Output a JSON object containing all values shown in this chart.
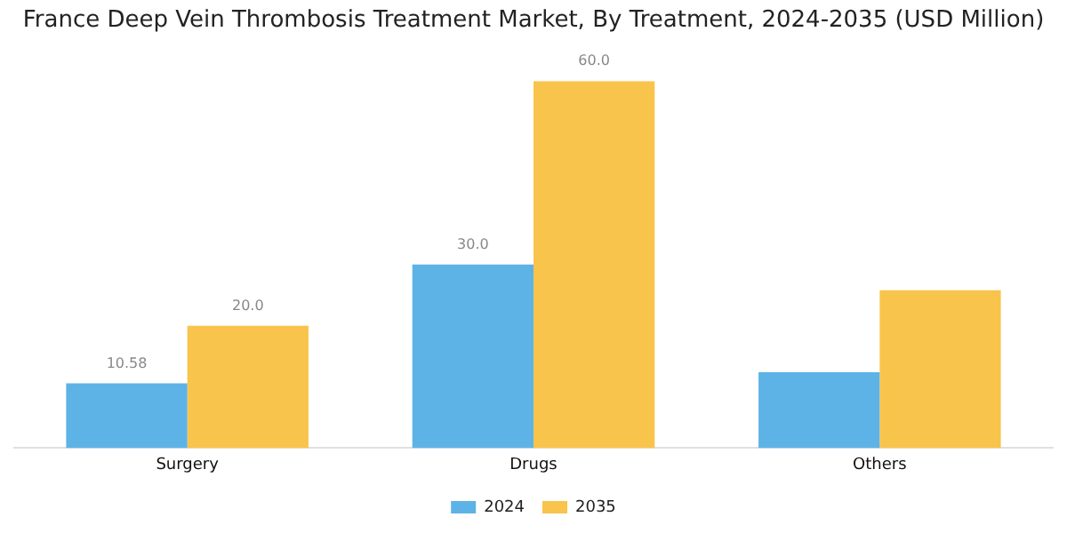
{
  "chart_data": {
    "type": "bar",
    "title": "France Deep Vein Thrombosis Treatment Market, By Treatment, 2024-2035 (USD Million)",
    "categories": [
      "Surgery",
      "Drugs",
      "Others"
    ],
    "series": [
      {
        "name": "2024",
        "color": "#5db3e6",
        "values": [
          10.58,
          30.0,
          12.4
        ],
        "value_labels": [
          "10.58",
          "30.0",
          null
        ]
      },
      {
        "name": "2035",
        "color": "#f9c44b",
        "values": [
          20.0,
          60.0,
          25.8
        ],
        "value_labels": [
          "20.0",
          "60.0",
          null
        ]
      }
    ],
    "legend": "bottom",
    "grid": false
  }
}
